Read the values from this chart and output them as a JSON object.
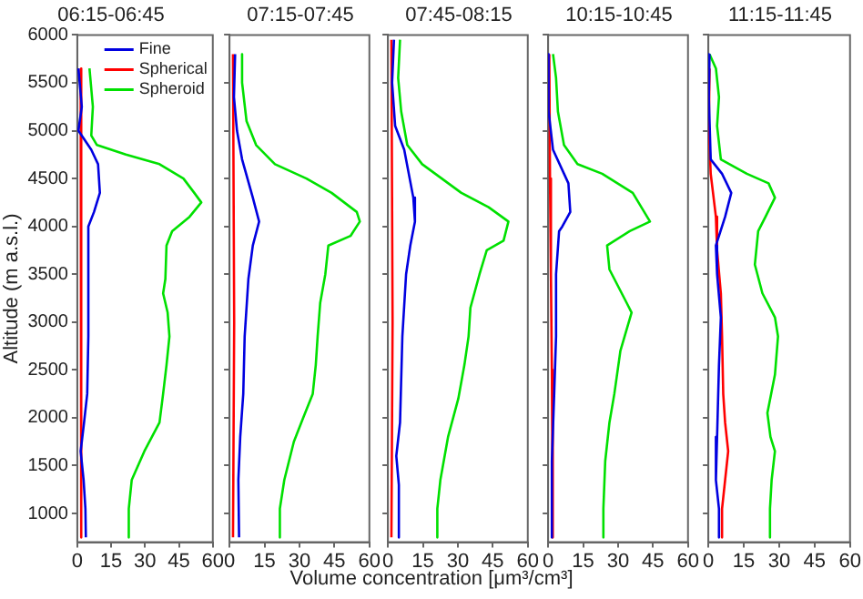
{
  "chart_data": [
    {
      "type": "line",
      "title": "06:15-06:45",
      "ylabel": "Altitude (m a.s.l.)",
      "legend": "top right",
      "xlim": [
        0,
        60
      ],
      "xticks": [
        0,
        15,
        30,
        45,
        60
      ],
      "ylim": [
        700,
        6000
      ],
      "yticks": [
        1000,
        1500,
        2000,
        2500,
        3000,
        3500,
        4000,
        4500,
        5000,
        5500,
        6000
      ],
      "series": [
        {
          "name": "Fine",
          "color": "#0000e0",
          "x": [
            0.5,
            2,
            0.5,
            6.2,
            9.2,
            10,
            7.4,
            4.9,
            4.9,
            4.4,
            3,
            1.5,
            2.8,
            3.6,
            3.8
          ],
          "values": [
            5650,
            5250,
            5000,
            4800,
            4650,
            4350,
            4150,
            4000,
            2850,
            2250,
            1950,
            1650,
            1350,
            1050,
            750
          ]
        },
        {
          "name": "Spherical",
          "color": "#ff0000",
          "x": [
            1.5,
            2,
            1.5
          ],
          "values": [
            5650,
            3000,
            750
          ]
        },
        {
          "name": "Spheroid",
          "color": "#00e000",
          "x": [
            5.4,
            6.9,
            6.2,
            8.7,
            21.5,
            36.4,
            47,
            51.8,
            54.9,
            49.7,
            42,
            39.5,
            39,
            38,
            40,
            40.8,
            39.5,
            38,
            36.4,
            29.7,
            24.1,
            22.8,
            22.8
          ],
          "values": [
            5650,
            5250,
            4950,
            4850,
            4750,
            4650,
            4500,
            4350,
            4250,
            4100,
            3950,
            3800,
            3450,
            3300,
            3100,
            2850,
            2550,
            2250,
            1950,
            1650,
            1350,
            1050,
            750
          ]
        }
      ]
    },
    {
      "type": "line",
      "title": "07:15-07:45",
      "tick_labels": "x",
      "xlim": [
        0,
        60
      ],
      "xticks": [
        0,
        15,
        30,
        45,
        60
      ],
      "ylim": [
        700,
        6000
      ],
      "yticks": [
        1000,
        1500,
        2000,
        2500,
        3000,
        3500,
        4000,
        4500,
        5000,
        5500,
        6000
      ],
      "series": [
        {
          "color": "#0000e0",
          "x": [
            2.4,
            1.9,
            3.2,
            5.4,
            10,
            12.7,
            10,
            8.1,
            6.5,
            5.9,
            4.6,
            3.8,
            4.1
          ],
          "values": [
            5800,
            5350,
            5000,
            4700,
            4300,
            4050,
            3800,
            3450,
            2850,
            2250,
            1800,
            1350,
            750
          ]
        },
        {
          "color": "#ff0000",
          "x": [
            1.5,
            2,
            1.5
          ],
          "values": [
            5800,
            3000,
            750
          ]
        },
        {
          "color": "#00e000",
          "x": [
            5.4,
            5.4,
            7.3,
            11.4,
            19.5,
            33,
            43.8,
            54.6,
            55.9,
            51.9,
            42.4,
            41.1,
            38.9,
            37.8,
            37,
            35.7,
            31.6,
            27.6,
            23.5,
            21.6,
            21.6
          ],
          "values": [
            5800,
            5500,
            5100,
            4850,
            4650,
            4500,
            4350,
            4150,
            4050,
            3900,
            3800,
            3500,
            3200,
            2850,
            2550,
            2250,
            2000,
            1750,
            1350,
            1050,
            750
          ]
        }
      ]
    },
    {
      "type": "line",
      "title": "07:45-08:15",
      "xlabel": "Volume concentration [μm³/cm³]",
      "tick_labels": "x",
      "xlim": [
        0,
        60
      ],
      "xticks": [
        0,
        15,
        30,
        45,
        60
      ],
      "ylim": [
        700,
        6000
      ],
      "yticks": [
        1000,
        1500,
        2000,
        2500,
        3000,
        3500,
        4000,
        4500,
        5000,
        5500,
        6000
      ],
      "series": [
        {
          "color": "#0000e0",
          "x": [
            2.6,
            1.8,
            3.1,
            7,
            10.9,
            11.6,
            9.6,
            7.8,
            6.2,
            5.2,
            3.6,
            4.7,
            4.7
          ],
          "values": [
            5950,
            5500,
            5050,
            4800,
            4300,
            4050,
            3800,
            3500,
            2850,
            1950,
            1600,
            1300,
            750
          ]
        },
        {
          "color": "#ff0000",
          "x": [
            1.5,
            2,
            1.5
          ],
          "values": [
            5950,
            3000,
            750
          ]
        },
        {
          "color": "#00e000",
          "x": [
            5.2,
            4.4,
            5.7,
            8.3,
            14.7,
            31.5,
            43.2,
            51.7,
            49.6,
            42.4,
            39.3,
            35.4,
            34.6,
            32.8,
            30.2,
            25.8,
            22.5,
            21.2,
            21.2
          ],
          "values": [
            5950,
            5550,
            5200,
            4850,
            4650,
            4350,
            4200,
            4050,
            3850,
            3750,
            3500,
            3150,
            2850,
            2550,
            2200,
            1800,
            1350,
            1050,
            750
          ]
        }
      ]
    },
    {
      "type": "line",
      "title": "10:15-10:45",
      "tick_labels": "x",
      "xlim": [
        0,
        60
      ],
      "xticks": [
        0,
        15,
        30,
        45,
        60
      ],
      "ylim": [
        700,
        6000
      ],
      "yticks": [
        1000,
        1500,
        2000,
        2500,
        3000,
        3500,
        4000,
        4500,
        5000,
        5500,
        6000
      ],
      "series": [
        {
          "color": "#0000e0",
          "x": [
            0.2,
            0.2,
            2.1,
            8.7,
            9.5,
            6.1,
            4.7,
            3.4,
            3.4,
            2.6,
            1.6,
            1.6
          ],
          "values": [
            5800,
            5200,
            4800,
            4450,
            4150,
            4000,
            3950,
            3500,
            2850,
            2250,
            1550,
            750
          ]
        },
        {
          "color": "#ff0000",
          "x": [
            0.5,
            0.8,
            1.2,
            1.6,
            2,
            2
          ],
          "values": [
            5800,
            4500,
            3500,
            2500,
            1500,
            750
          ]
        },
        {
          "color": "#00e000",
          "x": [
            2.1,
            3.4,
            4.2,
            6.8,
            12.6,
            23.2,
            36.3,
            43.7,
            35,
            25.3,
            26.3,
            33.7,
            35.8,
            31,
            28.4,
            26.3,
            24.5,
            23.7,
            23.7
          ],
          "values": [
            5800,
            5550,
            5200,
            4850,
            4650,
            4550,
            4350,
            4050,
            3950,
            3800,
            3550,
            3200,
            3100,
            2700,
            2250,
            1950,
            1550,
            1050,
            750
          ]
        }
      ]
    },
    {
      "type": "line",
      "title": "11:15-11:45",
      "tick_labels": "x",
      "xlim": [
        0,
        60
      ],
      "xticks": [
        0,
        15,
        30,
        45,
        60
      ],
      "ylim": [
        700,
        6000
      ],
      "yticks": [
        1000,
        1500,
        2000,
        2500,
        3000,
        3500,
        4000,
        4500,
        5000,
        5500,
        6000
      ],
      "series": [
        {
          "color": "#0000e0",
          "x": [
            0.5,
            0.2,
            1,
            5.8,
            9.7,
            7.1,
            3.2,
            3.7,
            5.3,
            4.5,
            3.7,
            3.2,
            4.5,
            4.5
          ],
          "values": [
            5800,
            5350,
            4700,
            4550,
            4350,
            4100,
            3800,
            3500,
            3050,
            2550,
            1800,
            1350,
            1050,
            750
          ]
        },
        {
          "color": "#ff0000",
          "x": [
            0.5,
            0.2,
            1,
            3.2,
            3.7,
            5.3,
            5.8,
            6.3,
            7.1,
            8.4,
            7.1,
            5.8,
            5.8
          ],
          "values": [
            5650,
            5050,
            4550,
            4100,
            3750,
            3300,
            2850,
            2250,
            1950,
            1650,
            1350,
            1050,
            750
          ]
        },
        {
          "color": "#00e000",
          "x": [
            0.5,
            3.2,
            4.5,
            3.7,
            5.3,
            16.3,
            25.5,
            28.2,
            24.2,
            21.1,
            19.7,
            22.9,
            28.2,
            29.5,
            28.2,
            25,
            26.3,
            28.2,
            26.8,
            26.1,
            26.1
          ],
          "values": [
            5800,
            5650,
            5350,
            5050,
            4700,
            4550,
            4450,
            4300,
            4100,
            3950,
            3600,
            3300,
            3050,
            2850,
            2450,
            2050,
            1800,
            1650,
            1350,
            1050,
            750
          ]
        }
      ]
    }
  ]
}
